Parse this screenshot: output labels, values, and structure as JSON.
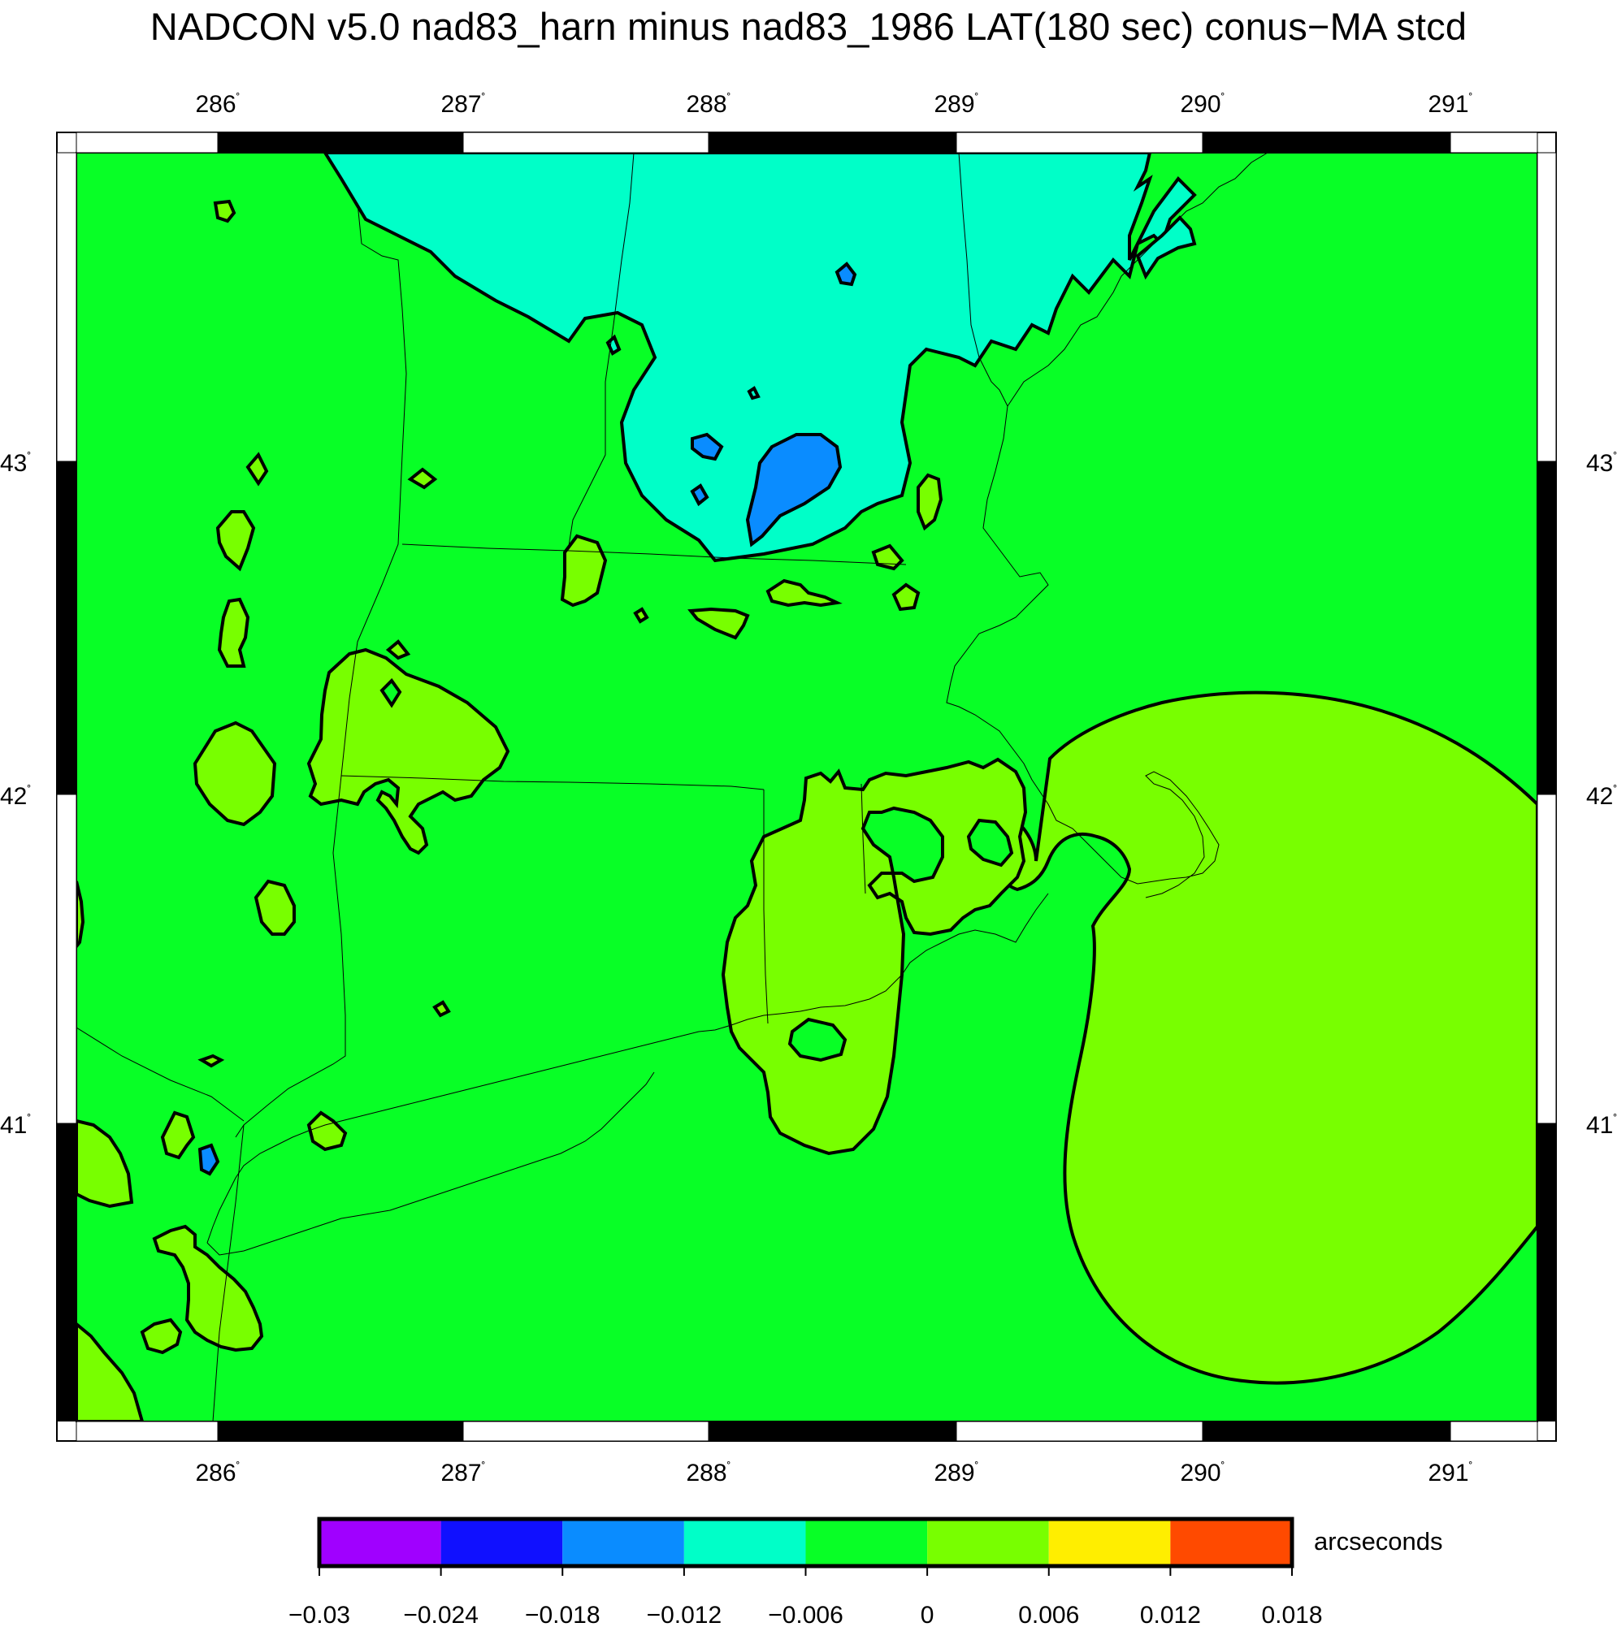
{
  "title": "NADCON v5.0 nad83_harn minus nad83_1986 LAT(180 sec) conus−MA stcd",
  "map": {
    "lon_ticks": [
      "286",
      "287",
      "288",
      "289",
      "290",
      "291"
    ],
    "lat_ticks": [
      "43",
      "42",
      "41"
    ],
    "degree_symbol": "˚",
    "colors": {
      "land_green": "#08ff26",
      "cyan": "#00ffc8",
      "blue": "#0a8cff",
      "yellow_green": "#78ff00",
      "frame": "#000000"
    }
  },
  "colorbar": {
    "unit": "arcseconds",
    "tick_labels": [
      "−0.03",
      "−0.024",
      "−0.018",
      "−0.012",
      "−0.006",
      "0",
      "0.006",
      "0.012",
      "0.018"
    ],
    "colors": [
      "#a000ff",
      "#1010ff",
      "#0a8cff",
      "#00ffc8",
      "#08ff26",
      "#78ff00",
      "#ffee00",
      "#ff4a00"
    ]
  }
}
